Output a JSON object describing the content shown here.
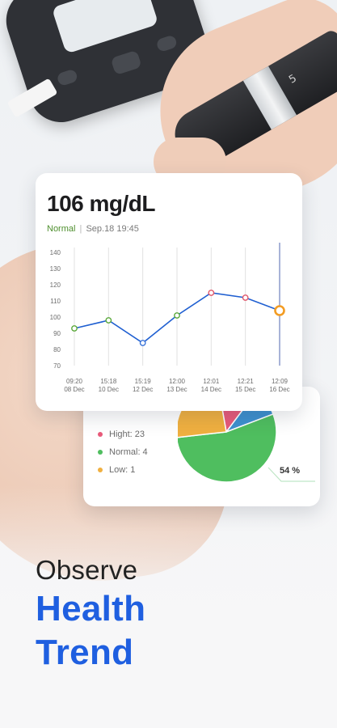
{
  "reading": {
    "value": "106 mg/dL",
    "status": "Normal",
    "separator": "|",
    "timestamp": "Sep.18 19:45"
  },
  "chart_data": {
    "type": "line",
    "x": [
      [
        "09:20",
        "08 Dec"
      ],
      [
        "15:18",
        "10 Dec"
      ],
      [
        "15:19",
        "12 Dec"
      ],
      [
        "12:00",
        "13 Dec"
      ],
      [
        "12:01",
        "14 Dec"
      ],
      [
        "12:21",
        "15 Dec"
      ],
      [
        "12:09",
        "16 Dec"
      ]
    ],
    "series": [
      {
        "values": [
          93,
          98,
          84,
          101,
          115,
          112,
          104
        ],
        "point_colors": [
          "#5aa83a",
          "#5aa83a",
          "#3b74d8",
          "#5aa83a",
          "#e0566a",
          "#e0566a",
          "#f39c23"
        ]
      }
    ],
    "yticks": [
      140,
      130,
      120,
      110,
      100,
      90,
      80,
      70
    ],
    "ylim": [
      70,
      140
    ],
    "line_color": "#1f5fd1",
    "highlight_last": true
  },
  "distribution": {
    "legend": [
      {
        "label": "Hight: 23",
        "color": "#e85a7a"
      },
      {
        "label": "Normal: 4",
        "color": "#4fbe5f"
      },
      {
        "label": "Low: 1",
        "color": "#f0b040"
      }
    ],
    "slices": [
      {
        "name": "Hight",
        "percent": 13,
        "color": "#e85a7a"
      },
      {
        "name": "Blue",
        "percent": 9,
        "color": "#3d90cf"
      },
      {
        "name": "Normal",
        "percent": 54,
        "color": "#4fbe5f"
      },
      {
        "name": "Low",
        "percent": 24,
        "color": "#f0b040"
      }
    ],
    "highlight_label": "54 %"
  },
  "headline": {
    "line1": "Observe",
    "line2": "Health",
    "line3": "Trend"
  },
  "colors": {
    "accent": "#1f5fe0",
    "normal": "#4e8f2e"
  },
  "icons": {
    "pen_marking": "5"
  }
}
